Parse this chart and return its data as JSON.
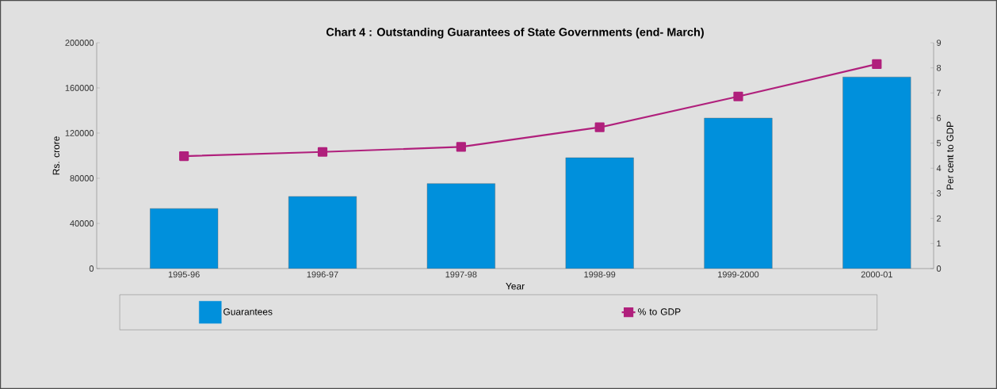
{
  "chart_data": {
    "type": "bar",
    "title": "Chart 4 : Outstanding Guarantees of State Governments (end- March)",
    "xlabel": "Year",
    "ylabel": "Rs. crore",
    "y2label": "Per cent to GDP",
    "categories": [
      "1995-96",
      "1996-97",
      "1997-98",
      "1998-99",
      "1999-2000",
      "2000-01"
    ],
    "series": [
      {
        "name": "Guarantees",
        "color": "#0090dc",
        "values": [
          53200,
          63900,
          75300,
          98200,
          133300,
          169700
        ]
      },
      {
        "name": "% to GDP",
        "type": "line",
        "axis": "y2",
        "color": "#b0207c",
        "marker": "square",
        "values": [
          4.48,
          4.65,
          4.85,
          5.63,
          6.86,
          8.15
        ]
      }
    ],
    "ylim": [
      0,
      200000
    ],
    "yticks": [
      0,
      40000,
      80000,
      120000,
      160000,
      200000
    ],
    "y2lim": [
      0,
      9
    ],
    "y2ticks": [
      0,
      1,
      2,
      3,
      4,
      5,
      6,
      7,
      8,
      9
    ],
    "grid": false,
    "legend": "bottom"
  }
}
